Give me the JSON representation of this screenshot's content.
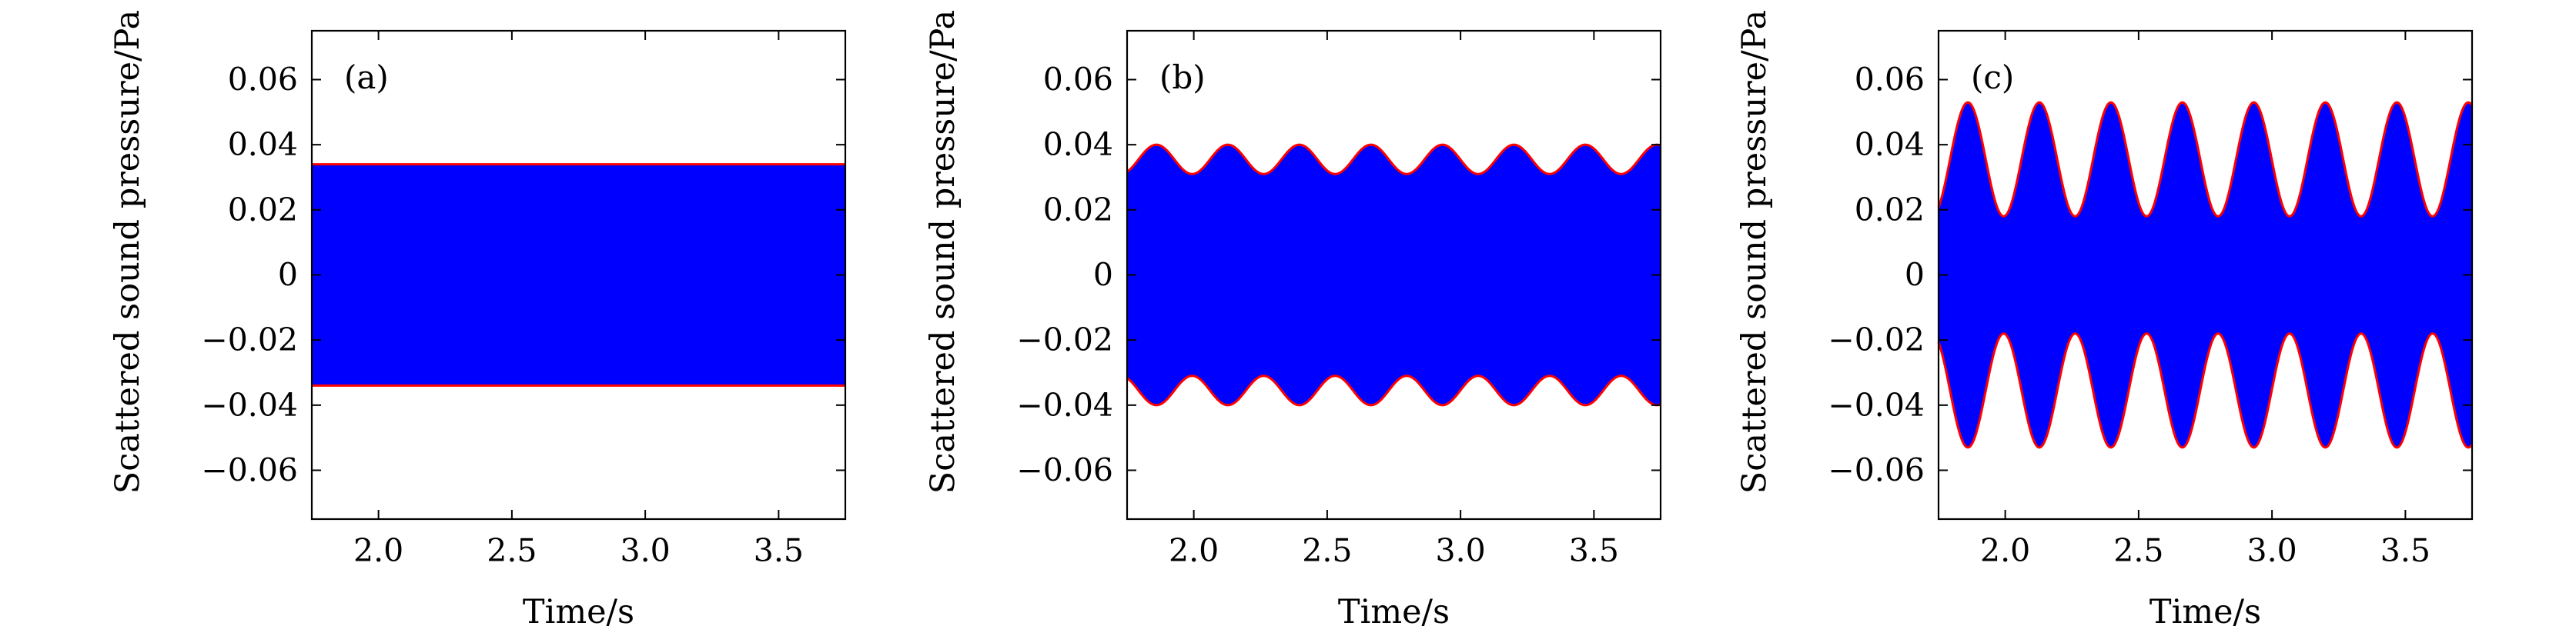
{
  "chart_data": [
    {
      "type": "area",
      "panel_label": "(a)",
      "xlabel": "Time/s",
      "ylabel": "Scattered sound pressure/Pa",
      "xlim": [
        1.75,
        3.75
      ],
      "ylim": [
        -0.075,
        0.075
      ],
      "xticks": [
        2.0,
        2.5,
        3.0,
        3.5
      ],
      "xtick_labels": [
        "2.0",
        "2.5",
        "3.0",
        "3.5"
      ],
      "yticks": [
        0.06,
        0.04,
        0.02,
        0,
        -0.02,
        -0.04,
        -0.06
      ],
      "ytick_labels": [
        "0.06",
        "0.04",
        "0.02",
        "0",
        "−0.02",
        "−0.04",
        "−0.06"
      ],
      "envelope": {
        "mean": 0.034,
        "amplitude": 0.0,
        "period": 0.268,
        "phase_peak_time": 1.86
      },
      "fill_color": "#0000ff",
      "envelope_color": "#ff0000"
    },
    {
      "type": "area",
      "panel_label": "(b)",
      "xlabel": "Time/s",
      "ylabel": "Scattered sound pressure/Pa",
      "xlim": [
        1.75,
        3.75
      ],
      "ylim": [
        -0.075,
        0.075
      ],
      "xticks": [
        2.0,
        2.5,
        3.0,
        3.5
      ],
      "xtick_labels": [
        "2.0",
        "2.5",
        "3.0",
        "3.5"
      ],
      "yticks": [
        0.06,
        0.04,
        0.02,
        0,
        -0.02,
        -0.04,
        -0.06
      ],
      "ytick_labels": [
        "0.06",
        "0.04",
        "0.02",
        "0",
        "−0.02",
        "−0.04",
        "−0.06"
      ],
      "envelope": {
        "mean": 0.0355,
        "amplitude": 0.0045,
        "period": 0.268,
        "phase_peak_time": 1.86
      },
      "fill_color": "#0000ff",
      "envelope_color": "#ff0000"
    },
    {
      "type": "area",
      "panel_label": "(c)",
      "xlabel": "Time/s",
      "ylabel": "Scattered sound pressure/Pa",
      "xlim": [
        1.75,
        3.75
      ],
      "ylim": [
        -0.075,
        0.075
      ],
      "xticks": [
        2.0,
        2.5,
        3.0,
        3.5
      ],
      "xtick_labels": [
        "2.0",
        "2.5",
        "3.0",
        "3.5"
      ],
      "yticks": [
        0.06,
        0.04,
        0.02,
        0,
        -0.02,
        -0.04,
        -0.06
      ],
      "ytick_labels": [
        "0.06",
        "0.04",
        "0.02",
        "0",
        "−0.02",
        "−0.04",
        "−0.06"
      ],
      "envelope": {
        "mean": 0.0355,
        "amplitude": 0.0175,
        "period": 0.268,
        "phase_peak_time": 1.86
      },
      "fill_color": "#0000ff",
      "envelope_color": "#ff0000"
    }
  ]
}
